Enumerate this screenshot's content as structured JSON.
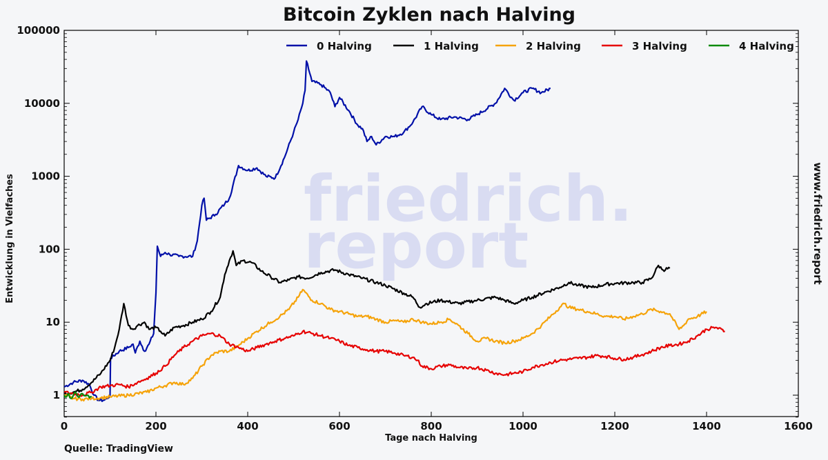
{
  "source": "Quelle: TradingView",
  "website": "www.friedrich.report",
  "watermark": {
    "line1": "friedrich.",
    "line2": "report"
  },
  "colors": {
    "halving0": "#0010a8",
    "halving1": "#000000",
    "halving2": "#f5a30a",
    "halving3": "#e60000",
    "halving4": "#088a08"
  },
  "chart_data": {
    "type": "line",
    "title": "Bitcoin Zyklen nach Halving",
    "xlabel": "Tage nach Halving",
    "ylabel": "Entwicklung in Vielfaches",
    "xlim": [
      0,
      1600
    ],
    "ylim": [
      0.5,
      100000
    ],
    "yscale": "log",
    "xticks": [
      "0",
      "200",
      "400",
      "600",
      "800",
      "1000",
      "1200",
      "1400",
      "1600"
    ],
    "yticks": [
      "1",
      "10",
      "100",
      "1000",
      "10000",
      "100000"
    ],
    "grid": false,
    "legend_position": "top",
    "series": [
      {
        "name": "0 Halving",
        "color_key": "halving0",
        "points": [
          [
            0,
            1.3
          ],
          [
            20,
            1.5
          ],
          [
            40,
            1.6
          ],
          [
            55,
            1.4
          ],
          [
            65,
            1.0
          ],
          [
            75,
            0.85
          ],
          [
            85,
            0.85
          ],
          [
            95,
            0.9
          ],
          [
            100,
            1.0
          ],
          [
            101,
            3.2
          ],
          [
            120,
            4.0
          ],
          [
            140,
            4.5
          ],
          [
            150,
            5.0
          ],
          [
            155,
            3.8
          ],
          [
            165,
            5.5
          ],
          [
            175,
            4.0
          ],
          [
            185,
            5.0
          ],
          [
            195,
            7.0
          ],
          [
            200,
            25
          ],
          [
            203,
            110
          ],
          [
            210,
            80
          ],
          [
            220,
            90
          ],
          [
            230,
            85
          ],
          [
            250,
            80
          ],
          [
            280,
            80
          ],
          [
            290,
            130
          ],
          [
            300,
            400
          ],
          [
            305,
            500
          ],
          [
            310,
            250
          ],
          [
            330,
            300
          ],
          [
            350,
            420
          ],
          [
            360,
            500
          ],
          [
            380,
            1400
          ],
          [
            400,
            1200
          ],
          [
            420,
            1300
          ],
          [
            440,
            1000
          ],
          [
            460,
            950
          ],
          [
            480,
            1800
          ],
          [
            500,
            4000
          ],
          [
            510,
            6000
          ],
          [
            520,
            10000
          ],
          [
            525,
            15000
          ],
          [
            528,
            38000
          ],
          [
            540,
            20000
          ],
          [
            560,
            18000
          ],
          [
            580,
            14000
          ],
          [
            590,
            9000
          ],
          [
            600,
            12000
          ],
          [
            620,
            8000
          ],
          [
            640,
            5000
          ],
          [
            650,
            4500
          ],
          [
            660,
            3000
          ],
          [
            670,
            3500
          ],
          [
            680,
            2700
          ],
          [
            700,
            3500
          ],
          [
            720,
            3500
          ],
          [
            740,
            4000
          ],
          [
            760,
            5500
          ],
          [
            780,
            9000
          ],
          [
            800,
            7000
          ],
          [
            820,
            6000
          ],
          [
            850,
            6500
          ],
          [
            880,
            6000
          ],
          [
            900,
            7000
          ],
          [
            940,
            10000
          ],
          [
            960,
            16000
          ],
          [
            980,
            11000
          ],
          [
            1000,
            14000
          ],
          [
            1020,
            16000
          ],
          [
            1040,
            14000
          ],
          [
            1060,
            16000
          ]
        ]
      },
      {
        "name": "1 Halving",
        "color_key": "halving1",
        "points": [
          [
            0,
            1.05
          ],
          [
            20,
            1.1
          ],
          [
            40,
            1.2
          ],
          [
            60,
            1.5
          ],
          [
            80,
            2.0
          ],
          [
            100,
            3.0
          ],
          [
            110,
            4.5
          ],
          [
            120,
            8
          ],
          [
            130,
            18
          ],
          [
            140,
            9
          ],
          [
            150,
            8
          ],
          [
            160,
            9
          ],
          [
            175,
            10
          ],
          [
            185,
            8
          ],
          [
            200,
            8.5
          ],
          [
            210,
            7.5
          ],
          [
            220,
            6.5
          ],
          [
            240,
            8.5
          ],
          [
            260,
            9
          ],
          [
            280,
            10
          ],
          [
            300,
            11
          ],
          [
            320,
            14
          ],
          [
            340,
            22
          ],
          [
            350,
            45
          ],
          [
            360,
            70
          ],
          [
            368,
            95
          ],
          [
            375,
            60
          ],
          [
            390,
            70
          ],
          [
            410,
            65
          ],
          [
            430,
            50
          ],
          [
            450,
            42
          ],
          [
            470,
            35
          ],
          [
            490,
            38
          ],
          [
            510,
            42
          ],
          [
            530,
            40
          ],
          [
            560,
            48
          ],
          [
            590,
            52
          ],
          [
            620,
            45
          ],
          [
            650,
            40
          ],
          [
            680,
            35
          ],
          [
            700,
            32
          ],
          [
            740,
            25
          ],
          [
            760,
            22
          ],
          [
            775,
            16
          ],
          [
            790,
            18
          ],
          [
            820,
            20
          ],
          [
            860,
            18
          ],
          [
            900,
            20
          ],
          [
            940,
            22
          ],
          [
            960,
            20
          ],
          [
            980,
            18
          ],
          [
            1000,
            20
          ],
          [
            1020,
            22
          ],
          [
            1050,
            26
          ],
          [
            1080,
            30
          ],
          [
            1100,
            35
          ],
          [
            1120,
            32
          ],
          [
            1150,
            30
          ],
          [
            1180,
            33
          ],
          [
            1200,
            34
          ],
          [
            1240,
            35
          ],
          [
            1260,
            35
          ],
          [
            1280,
            40
          ],
          [
            1295,
            60
          ],
          [
            1305,
            52
          ],
          [
            1320,
            55
          ]
        ]
      },
      {
        "name": "2 Halving",
        "color_key": "halving2",
        "points": [
          [
            0,
            1.0
          ],
          [
            20,
            0.9
          ],
          [
            40,
            0.88
          ],
          [
            60,
            0.9
          ],
          [
            80,
            0.92
          ],
          [
            100,
            0.95
          ],
          [
            140,
            1.0
          ],
          [
            180,
            1.1
          ],
          [
            200,
            1.25
          ],
          [
            220,
            1.35
          ],
          [
            240,
            1.5
          ],
          [
            260,
            1.4
          ],
          [
            280,
            1.7
          ],
          [
            300,
            2.5
          ],
          [
            320,
            3.5
          ],
          [
            340,
            4.0
          ],
          [
            360,
            4.0
          ],
          [
            380,
            4.8
          ],
          [
            400,
            6
          ],
          [
            420,
            7.5
          ],
          [
            450,
            10
          ],
          [
            470,
            12
          ],
          [
            490,
            15
          ],
          [
            510,
            22
          ],
          [
            520,
            28
          ],
          [
            540,
            20
          ],
          [
            560,
            18
          ],
          [
            580,
            15
          ],
          [
            600,
            14
          ],
          [
            620,
            13
          ],
          [
            640,
            12
          ],
          [
            660,
            12
          ],
          [
            680,
            11
          ],
          [
            700,
            10
          ],
          [
            720,
            10.5
          ],
          [
            740,
            10
          ],
          [
            760,
            11
          ],
          [
            780,
            10
          ],
          [
            800,
            9.5
          ],
          [
            820,
            10
          ],
          [
            840,
            11
          ],
          [
            860,
            9
          ],
          [
            880,
            7
          ],
          [
            900,
            5.5
          ],
          [
            920,
            6
          ],
          [
            940,
            5.5
          ],
          [
            960,
            5.2
          ],
          [
            980,
            5.5
          ],
          [
            1000,
            6
          ],
          [
            1020,
            7
          ],
          [
            1040,
            9
          ],
          [
            1060,
            12
          ],
          [
            1080,
            16
          ],
          [
            1090,
            18
          ],
          [
            1100,
            16
          ],
          [
            1120,
            15
          ],
          [
            1140,
            14
          ],
          [
            1160,
            13
          ],
          [
            1180,
            12
          ],
          [
            1200,
            12
          ],
          [
            1220,
            11
          ],
          [
            1240,
            12
          ],
          [
            1260,
            13
          ],
          [
            1280,
            15
          ],
          [
            1300,
            14
          ],
          [
            1320,
            13
          ],
          [
            1340,
            8
          ],
          [
            1350,
            9
          ],
          [
            1360,
            11
          ],
          [
            1380,
            12
          ],
          [
            1400,
            14
          ]
        ]
      },
      {
        "name": "3 Halving",
        "color_key": "halving3",
        "points": [
          [
            0,
            1.1
          ],
          [
            20,
            1.05
          ],
          [
            40,
            1.0
          ],
          [
            60,
            1.1
          ],
          [
            80,
            1.3
          ],
          [
            100,
            1.35
          ],
          [
            120,
            1.4
          ],
          [
            140,
            1.3
          ],
          [
            160,
            1.5
          ],
          [
            180,
            1.7
          ],
          [
            200,
            2.0
          ],
          [
            220,
            2.5
          ],
          [
            240,
            3.5
          ],
          [
            260,
            4.5
          ],
          [
            280,
            5.5
          ],
          [
            300,
            6.5
          ],
          [
            320,
            7.0
          ],
          [
            340,
            6.5
          ],
          [
            360,
            5.0
          ],
          [
            380,
            4.5
          ],
          [
            400,
            4.0
          ],
          [
            420,
            4.5
          ],
          [
            440,
            5.0
          ],
          [
            460,
            5.5
          ],
          [
            480,
            6.0
          ],
          [
            500,
            6.5
          ],
          [
            520,
            7.5
          ],
          [
            540,
            7.0
          ],
          [
            560,
            6.5
          ],
          [
            580,
            6.0
          ],
          [
            600,
            5.5
          ],
          [
            620,
            4.8
          ],
          [
            640,
            4.5
          ],
          [
            660,
            4.2
          ],
          [
            680,
            4.0
          ],
          [
            700,
            4.0
          ],
          [
            720,
            3.8
          ],
          [
            740,
            3.5
          ],
          [
            760,
            3.3
          ],
          [
            770,
            3.0
          ],
          [
            780,
            2.5
          ],
          [
            800,
            2.3
          ],
          [
            820,
            2.5
          ],
          [
            840,
            2.6
          ],
          [
            860,
            2.4
          ],
          [
            880,
            2.3
          ],
          [
            900,
            2.4
          ],
          [
            920,
            2.2
          ],
          [
            940,
            2.0
          ],
          [
            960,
            1.9
          ],
          [
            980,
            2.0
          ],
          [
            1000,
            2.1
          ],
          [
            1020,
            2.4
          ],
          [
            1040,
            2.6
          ],
          [
            1060,
            2.8
          ],
          [
            1080,
            3.0
          ],
          [
            1100,
            3.1
          ],
          [
            1120,
            3.2
          ],
          [
            1140,
            3.3
          ],
          [
            1160,
            3.5
          ],
          [
            1180,
            3.4
          ],
          [
            1200,
            3.2
          ],
          [
            1220,
            3.1
          ],
          [
            1240,
            3.3
          ],
          [
            1260,
            3.6
          ],
          [
            1280,
            4.0
          ],
          [
            1300,
            4.5
          ],
          [
            1320,
            4.8
          ],
          [
            1340,
            5.0
          ],
          [
            1360,
            5.5
          ],
          [
            1380,
            6.5
          ],
          [
            1400,
            8.0
          ],
          [
            1420,
            8.5
          ],
          [
            1440,
            7.5
          ]
        ]
      },
      {
        "name": "4 Halving",
        "color_key": "halving4",
        "points": [
          [
            0,
            1.0
          ],
          [
            5,
            0.95
          ],
          [
            10,
            1.05
          ],
          [
            15,
            0.9
          ],
          [
            20,
            1.0
          ],
          [
            25,
            1.1
          ],
          [
            30,
            0.95
          ],
          [
            35,
            1.0
          ],
          [
            40,
            1.05
          ],
          [
            45,
            0.98
          ],
          [
            50,
            1.0
          ],
          [
            55,
            0.92
          ],
          [
            60,
            0.95
          ]
        ]
      }
    ]
  }
}
